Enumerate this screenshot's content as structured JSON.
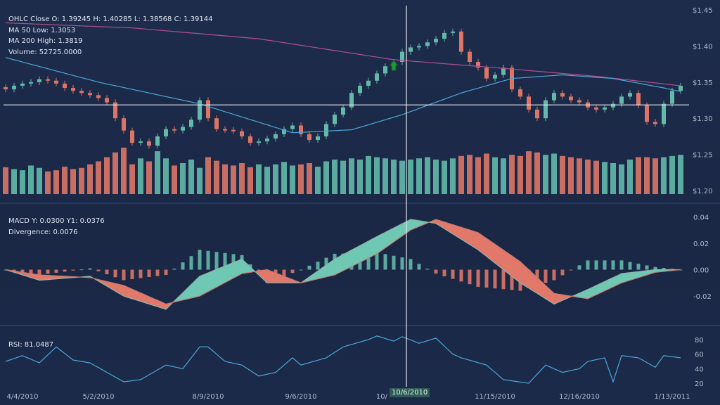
{
  "legend": {
    "ohlc": "OHLC Close O: 1.39245 H: 1.40285 L: 1.38568 C: 1.39144",
    "ma50": "MA 50 Low: 1.3053",
    "ma200": "MA 200 High: 1.3819",
    "volume": "Volume: 52725.0000",
    "macd": "MACD Y: 0.0300 Y1: 0.0376",
    "divergence": "Divergence: 0.0076",
    "rsi": "RSI: 81.0487"
  },
  "crosshair_label": "10/6/2010",
  "colors": {
    "up": "#63b9aa",
    "down": "#dc7566",
    "ma50": "#4aa8d8",
    "ma200": "#b0508f",
    "rsi": "#4aa8d8",
    "crosshair": "#e6e9ef"
  },
  "chart_data": [
    {
      "type": "candlestick",
      "title": "OHLC",
      "yaxis": {
        "ticks": [
          "$1.45",
          "$1.40",
          "$1.35",
          "$1.30",
          "$1.25",
          "$1.20"
        ],
        "range": [
          1.2,
          1.45
        ]
      },
      "x_labels": [
        {
          "bar": 2,
          "label": "4/4/2010"
        },
        {
          "bar": 11,
          "label": "5/2/2010"
        },
        {
          "bar": 24,
          "label": "8/9/2010"
        },
        {
          "bar": 35,
          "label": "9/6/2010"
        },
        {
          "bar": 47,
          "label": "10/"
        },
        {
          "bar": 58,
          "label": "11/15/2010"
        },
        {
          "bar": 68,
          "label": "12/16/2010"
        },
        {
          "bar": 79,
          "label": "1/13/2011"
        }
      ],
      "close": [
        1.34,
        1.345,
        1.348,
        1.35,
        1.354,
        1.352,
        1.348,
        1.342,
        1.338,
        1.335,
        1.332,
        1.328,
        1.322,
        1.3,
        1.283,
        1.266,
        1.268,
        1.262,
        1.275,
        1.285,
        1.283,
        1.288,
        1.298,
        1.325,
        1.3,
        1.285,
        1.284,
        1.282,
        1.275,
        1.266,
        1.268,
        1.272,
        1.278,
        1.285,
        1.29,
        1.278,
        1.27,
        1.275,
        1.292,
        1.305,
        1.315,
        1.335,
        1.345,
        1.352,
        1.362,
        1.372,
        1.378,
        1.392,
        1.398,
        1.4,
        1.405,
        1.41,
        1.418,
        1.42,
        1.392,
        1.378,
        1.37,
        1.355,
        1.36,
        1.37,
        1.34,
        1.33,
        1.312,
        1.3,
        1.325,
        1.335,
        1.33,
        1.325,
        1.322,
        1.315,
        1.312,
        1.315,
        1.32,
        1.33,
        1.335,
        1.318,
        1.295,
        1.292,
        1.32,
        1.338,
        1.345
      ],
      "volume": [
        45,
        42,
        40,
        48,
        44,
        38,
        40,
        46,
        42,
        44,
        50,
        55,
        62,
        70,
        78,
        50,
        60,
        55,
        72,
        60,
        48,
        52,
        58,
        44,
        62,
        56,
        50,
        48,
        52,
        45,
        50,
        46,
        50,
        54,
        48,
        50,
        52,
        46,
        55,
        58,
        56,
        60,
        58,
        64,
        62,
        60,
        58,
        56,
        58,
        60,
        62,
        58,
        56,
        60,
        64,
        66,
        62,
        68,
        62,
        60,
        66,
        64,
        72,
        70,
        66,
        68,
        64,
        62,
        60,
        58,
        56,
        54,
        52,
        50,
        58,
        62,
        62,
        60,
        62,
        64,
        66
      ],
      "ma50": [
        [
          0,
          1.384
        ],
        [
          11,
          1.35
        ],
        [
          23,
          1.32
        ],
        [
          34,
          1.28
        ],
        [
          41,
          1.284
        ],
        [
          47,
          1.305
        ],
        [
          54,
          1.335
        ],
        [
          60,
          1.355
        ],
        [
          66,
          1.36
        ],
        [
          72,
          1.355
        ],
        [
          78,
          1.342
        ],
        [
          80,
          1.337
        ]
      ],
      "ma200": [
        [
          0,
          1.432
        ],
        [
          15,
          1.425
        ],
        [
          30,
          1.41
        ],
        [
          46,
          1.381
        ],
        [
          58,
          1.37
        ],
        [
          70,
          1.358
        ],
        [
          80,
          1.345
        ]
      ],
      "crosshair": {
        "bar": 47.5,
        "price": 1.3185
      },
      "signal_marker": {
        "bar": 46,
        "type": "buy-arrow"
      }
    },
    {
      "type": "macd",
      "title": "MACD",
      "yaxis": {
        "ticks": [
          "0.04",
          "0.02",
          "0.00",
          "-0.02"
        ],
        "range": [
          -0.042,
          0.045
        ]
      },
      "macd": [
        [
          0,
          0.0
        ],
        [
          4,
          -0.008
        ],
        [
          10,
          -0.005
        ],
        [
          14,
          -0.02
        ],
        [
          19,
          -0.03
        ],
        [
          23,
          -0.005
        ],
        [
          28,
          0.008
        ],
        [
          31,
          -0.01
        ],
        [
          35,
          -0.01
        ],
        [
          39,
          0.008
        ],
        [
          44,
          0.025
        ],
        [
          48,
          0.038
        ],
        [
          51,
          0.035
        ],
        [
          56,
          0.015
        ],
        [
          61,
          -0.01
        ],
        [
          65,
          -0.026
        ],
        [
          69,
          -0.015
        ],
        [
          73,
          -0.003
        ],
        [
          77,
          0.0
        ],
        [
          80,
          0.0
        ]
      ],
      "signal": [
        [
          0,
          0.0
        ],
        [
          4,
          -0.004
        ],
        [
          10,
          -0.006
        ],
        [
          14,
          -0.012
        ],
        [
          19,
          -0.026
        ],
        [
          23,
          -0.02
        ],
        [
          28,
          -0.003
        ],
        [
          31,
          0.0
        ],
        [
          35,
          -0.01
        ],
        [
          39,
          -0.004
        ],
        [
          44,
          0.012
        ],
        [
          48,
          0.03
        ],
        [
          51,
          0.038
        ],
        [
          56,
          0.028
        ],
        [
          61,
          0.006
        ],
        [
          65,
          -0.018
        ],
        [
          69,
          -0.022
        ],
        [
          73,
          -0.01
        ],
        [
          77,
          -0.002
        ],
        [
          80,
          0.0
        ]
      ]
    },
    {
      "type": "line",
      "title": "RSI",
      "yaxis": {
        "ticks": [
          "80",
          "60",
          "40",
          "20"
        ],
        "range": [
          10,
          90
        ]
      },
      "rsi": [
        [
          0,
          50
        ],
        [
          2,
          58
        ],
        [
          4,
          48
        ],
        [
          6,
          70
        ],
        [
          8,
          52
        ],
        [
          10,
          48
        ],
        [
          12,
          35
        ],
        [
          14,
          22
        ],
        [
          16,
          25
        ],
        [
          19,
          45
        ],
        [
          21,
          40
        ],
        [
          23,
          70
        ],
        [
          24,
          70
        ],
        [
          26,
          50
        ],
        [
          28,
          45
        ],
        [
          30,
          30
        ],
        [
          32,
          35
        ],
        [
          34,
          55
        ],
        [
          35,
          45
        ],
        [
          38,
          55
        ],
        [
          40,
          70
        ],
        [
          43,
          80
        ],
        [
          44,
          85
        ],
        [
          46,
          78
        ],
        [
          47,
          84
        ],
        [
          49,
          75
        ],
        [
          51,
          82
        ],
        [
          53,
          60
        ],
        [
          54,
          55
        ],
        [
          57,
          45
        ],
        [
          59,
          25
        ],
        [
          62,
          20
        ],
        [
          64,
          45
        ],
        [
          66,
          35
        ],
        [
          68,
          40
        ],
        [
          69,
          50
        ],
        [
          71,
          55
        ],
        [
          72,
          22
        ],
        [
          73,
          58
        ],
        [
          75,
          55
        ],
        [
          77,
          42
        ],
        [
          78,
          58
        ],
        [
          80,
          55
        ]
      ]
    }
  ]
}
